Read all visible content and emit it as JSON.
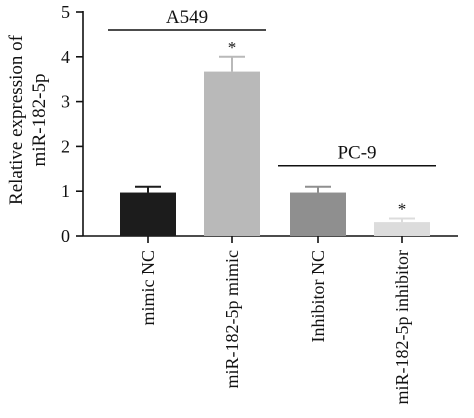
{
  "chart_data": {
    "type": "bar",
    "categories": [
      "mimic NC",
      "miR-182-5p mimic",
      "Inhibitor NC",
      "miR-182-5p inhibitor"
    ],
    "values": [
      0.97,
      3.67,
      0.97,
      0.31
    ],
    "errors": [
      0.13,
      0.33,
      0.13,
      0.08
    ],
    "significance": [
      "",
      "*",
      "",
      "*"
    ],
    "bar_colors": [
      "#1c1c1c",
      "#b9b9b9",
      "#8f8f8f",
      "#dcdcdc"
    ],
    "ylabel_lines": [
      "Relative expression of",
      "miR-182-5p"
    ],
    "ylim": [
      0,
      5
    ],
    "yticks": [
      0,
      1,
      2,
      3,
      4,
      5
    ],
    "groups": [
      {
        "label": "A549",
        "from": 0,
        "to": 1
      },
      {
        "label": "PC-9",
        "from": 2,
        "to": 3
      }
    ],
    "grid": false
  }
}
